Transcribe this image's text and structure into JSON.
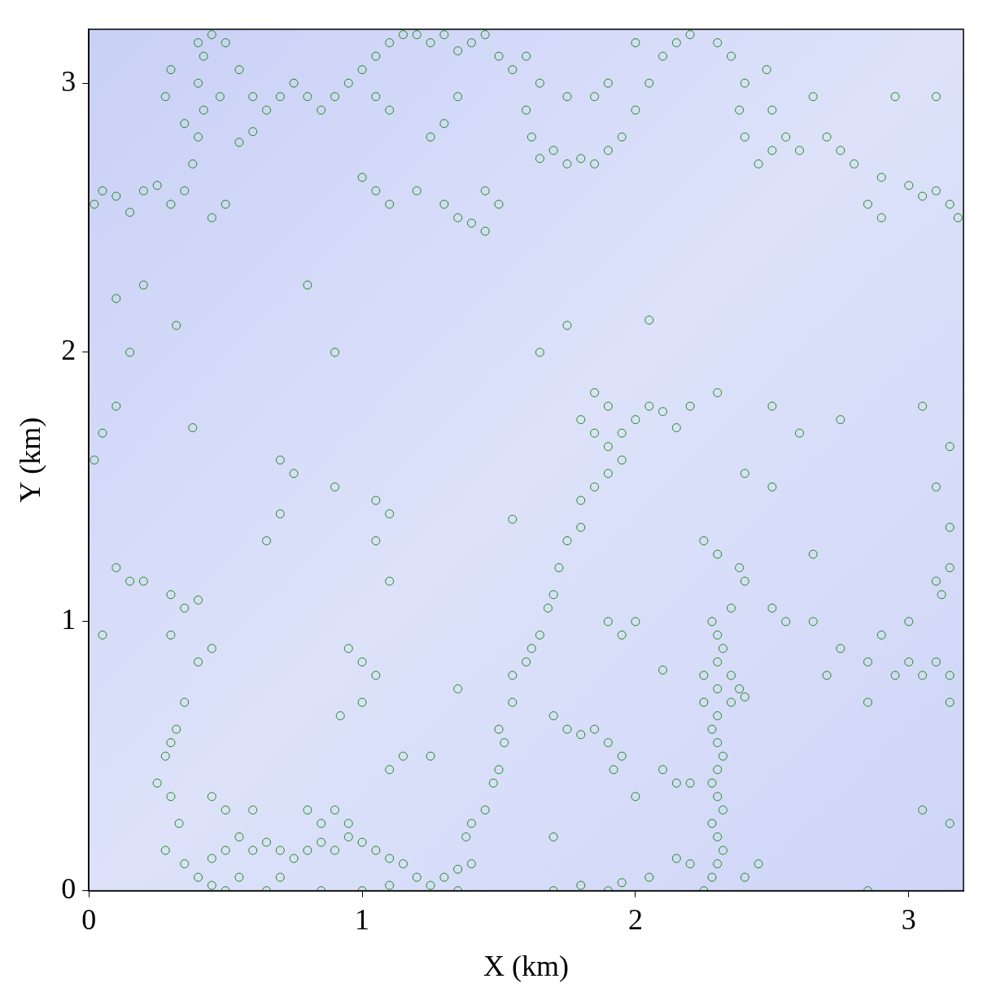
{
  "chart_data": {
    "type": "scatter",
    "x_label": "X (km)",
    "y_label": "Y (km)",
    "xlim": [
      0,
      3.2
    ],
    "ylim": [
      0,
      3.2
    ],
    "xticks": [
      0,
      1,
      2,
      3
    ],
    "yticks": [
      0,
      1,
      2,
      3
    ],
    "grid": false,
    "color": "#1e8c1e",
    "marker": "circle_open",
    "x": [
      0.02,
      0.05,
      0.1,
      0.15,
      0.2,
      0.25,
      0.3,
      0.35,
      0.38,
      0.4,
      0.42,
      0.4,
      0.42,
      0.45,
      0.5,
      0.55,
      0.48,
      0.6,
      0.65,
      0.7,
      0.75,
      0.8,
      0.85,
      0.9,
      0.95,
      1.0,
      1.05,
      1.1,
      1.15,
      1.2,
      1.25,
      1.3,
      1.35,
      1.4,
      1.45,
      1.5,
      1.55,
      1.6,
      1.65,
      1.6,
      1.62,
      1.65,
      1.7,
      1.75,
      1.8,
      1.85,
      1.9,
      1.95,
      2.0,
      2.05,
      2.1,
      2.15,
      2.2,
      2.3,
      2.35,
      2.4,
      2.38,
      2.4,
      2.45,
      2.5,
      2.5,
      2.48,
      2.55,
      2.6,
      2.7,
      2.75,
      2.8,
      2.9,
      3.0,
      3.05,
      3.1,
      3.15,
      3.18,
      2.85,
      2.9,
      1.0,
      1.05,
      1.1,
      1.3,
      1.35,
      1.4,
      1.45,
      1.5,
      1.45,
      1.2,
      0.45,
      0.5,
      1.3,
      1.25,
      1.35,
      1.1,
      1.05,
      0.3,
      0.4,
      0.28,
      0.35,
      1.85,
      1.9,
      1.75,
      2.95,
      3.1,
      2.65,
      2.0,
      0.1,
      0.2,
      0.15,
      0.1,
      0.05,
      0.02,
      0.32,
      0.8,
      0.55,
      0.6,
      0.9,
      1.75,
      2.05,
      1.65,
      1.85,
      1.9,
      1.8,
      1.85,
      1.9,
      1.95,
      2.0,
      2.05,
      2.1,
      2.15,
      1.95,
      1.9,
      1.85,
      1.8,
      2.2,
      2.3,
      2.5,
      2.6,
      2.4,
      2.5,
      2.75,
      3.05,
      3.15,
      3.1,
      3.15,
      2.25,
      2.3,
      1.55,
      0.38,
      0.7,
      0.75,
      0.9,
      1.05,
      0.65,
      0.7,
      0.1,
      0.15,
      0.2,
      0.3,
      0.35,
      0.3,
      0.4,
      0.05,
      0.4,
      0.45,
      0.25,
      0.28,
      0.3,
      0.32,
      0.35,
      0.3,
      0.33,
      0.28,
      0.35,
      0.4,
      0.45,
      0.5,
      0.55,
      0.45,
      0.5,
      0.55,
      0.6,
      0.65,
      0.7,
      0.75,
      0.8,
      0.85,
      0.9,
      0.95,
      1.0,
      1.05,
      1.1,
      1.15,
      1.2,
      1.25,
      1.3,
      1.35,
      0.6,
      0.5,
      0.45,
      0.8,
      0.85,
      0.9,
      0.95,
      0.7,
      0.65,
      0.85,
      1.0,
      1.1,
      1.35,
      1.4,
      1.38,
      1.4,
      1.45,
      1.48,
      1.5,
      1.52,
      1.5,
      1.55,
      1.55,
      1.6,
      1.62,
      1.65,
      1.68,
      1.7,
      1.72,
      1.75,
      1.8,
      1.0,
      0.95,
      1.05,
      1.0,
      0.92,
      1.1,
      1.15,
      1.25,
      1.1,
      1.1,
      1.05,
      1.35,
      1.7,
      1.75,
      1.8,
      1.85,
      1.9,
      1.95,
      1.92,
      1.95,
      1.9,
      2.0,
      2.1,
      2.0,
      2.15,
      2.1,
      2.2,
      1.7,
      1.8,
      1.9,
      1.95,
      2.05,
      1.7,
      2.25,
      2.28,
      2.3,
      2.32,
      2.3,
      2.28,
      2.32,
      2.3,
      2.28,
      2.3,
      2.32,
      2.3,
      2.28,
      2.3,
      2.35,
      2.38,
      2.3,
      2.25,
      2.4,
      2.35,
      2.3,
      2.32,
      2.3,
      2.28,
      2.35,
      2.4,
      2.38,
      2.2,
      2.15,
      2.4,
      2.45,
      2.25,
      2.5,
      2.55,
      2.65,
      2.7,
      2.65,
      2.85,
      2.9,
      2.85,
      2.95,
      3.0,
      3.05,
      3.1,
      3.15,
      3.15,
      3.1,
      3.15,
      3.12,
      2.75,
      3.05,
      3.15,
      3.0,
      2.85
    ],
    "values": [
      2.55,
      2.6,
      2.58,
      2.52,
      2.6,
      2.62,
      2.55,
      2.6,
      2.7,
      2.8,
      2.9,
      3.0,
      3.1,
      3.18,
      3.15,
      3.05,
      2.95,
      2.95,
      2.9,
      2.95,
      3.0,
      2.95,
      2.9,
      2.95,
      3.0,
      3.05,
      3.1,
      3.15,
      3.18,
      3.18,
      3.15,
      3.18,
      3.12,
      3.15,
      3.18,
      3.1,
      3.05,
      3.1,
      3.0,
      2.9,
      2.8,
      2.72,
      2.75,
      2.7,
      2.72,
      2.7,
      2.75,
      2.8,
      2.9,
      3.0,
      3.1,
      3.15,
      3.18,
      3.15,
      3.1,
      3.0,
      2.9,
      2.8,
      2.7,
      2.75,
      2.9,
      3.05,
      2.8,
      2.75,
      2.8,
      2.75,
      2.7,
      2.65,
      2.62,
      2.58,
      2.6,
      2.55,
      2.5,
      2.55,
      2.5,
      2.65,
      2.6,
      2.55,
      2.55,
      2.5,
      2.48,
      2.45,
      2.55,
      2.6,
      2.6,
      2.5,
      2.55,
      2.85,
      2.8,
      2.95,
      2.9,
      2.95,
      3.05,
      3.15,
      2.95,
      2.85,
      2.95,
      3.0,
      2.95,
      2.95,
      2.95,
      2.95,
      3.15,
      2.2,
      2.25,
      2.0,
      1.8,
      1.7,
      1.6,
      2.1,
      2.25,
      2.78,
      2.82,
      2.0,
      2.1,
      2.12,
      2.0,
      1.85,
      1.8,
      1.75,
      1.7,
      1.65,
      1.7,
      1.75,
      1.8,
      1.78,
      1.72,
      1.6,
      1.55,
      1.5,
      1.45,
      1.8,
      1.85,
      1.8,
      1.7,
      1.55,
      1.5,
      1.75,
      1.8,
      1.65,
      1.5,
      1.35,
      1.3,
      1.25,
      1.38,
      1.72,
      1.6,
      1.55,
      1.5,
      1.45,
      1.3,
      1.4,
      1.2,
      1.15,
      1.15,
      1.1,
      1.05,
      0.95,
      1.08,
      0.95,
      0.85,
      0.9,
      0.4,
      0.5,
      0.55,
      0.6,
      0.7,
      0.35,
      0.25,
      0.15,
      0.1,
      0.05,
      0.02,
      0.0,
      0.05,
      0.12,
      0.15,
      0.2,
      0.15,
      0.18,
      0.15,
      0.12,
      0.15,
      0.18,
      0.15,
      0.2,
      0.18,
      0.15,
      0.12,
      0.1,
      0.05,
      0.02,
      0.05,
      0.08,
      0.3,
      0.3,
      0.35,
      0.3,
      0.25,
      0.3,
      0.25,
      0.05,
      0.0,
      0.0,
      0.0,
      0.02,
      0.0,
      0.1,
      0.2,
      0.25,
      0.3,
      0.4,
      0.45,
      0.55,
      0.6,
      0.7,
      0.8,
      0.85,
      0.9,
      0.95,
      1.05,
      1.1,
      1.2,
      1.3,
      1.35,
      0.85,
      0.9,
      0.8,
      0.7,
      0.65,
      0.45,
      0.5,
      0.5,
      1.15,
      1.4,
      1.3,
      0.75,
      0.65,
      0.6,
      0.58,
      0.6,
      0.55,
      0.5,
      0.45,
      0.95,
      1.0,
      1.0,
      0.82,
      0.35,
      0.4,
      0.45,
      0.4,
      0.0,
      0.02,
      0.0,
      0.03,
      0.05,
      0.2,
      0.0,
      0.05,
      0.1,
      0.15,
      0.2,
      0.25,
      0.3,
      0.35,
      0.4,
      0.45,
      0.5,
      0.55,
      0.6,
      0.65,
      0.7,
      0.75,
      0.75,
      0.7,
      0.72,
      0.8,
      0.85,
      0.9,
      0.95,
      1.0,
      1.05,
      1.15,
      1.2,
      0.1,
      0.12,
      0.05,
      0.1,
      0.8,
      1.05,
      1.0,
      1.0,
      0.8,
      1.25,
      0.85,
      0.95,
      0.7,
      0.8,
      0.85,
      0.8,
      0.85,
      0.8,
      0.7,
      1.15,
      1.2,
      1.1,
      0.9,
      0.3,
      0.25,
      1.0,
      0.0
    ]
  }
}
